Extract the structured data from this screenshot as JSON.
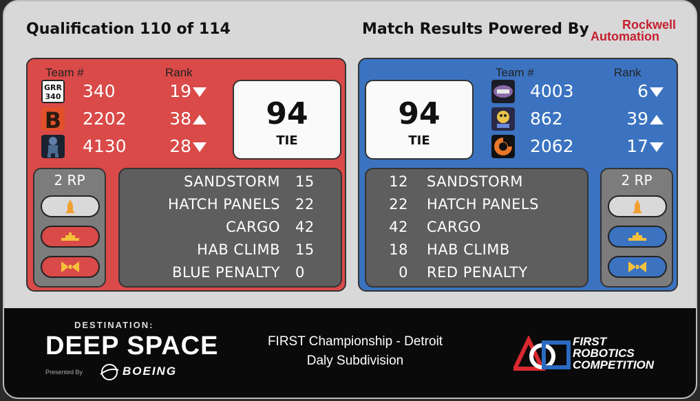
{
  "header": {
    "match_title": "Qualification 110 of 114",
    "powered_by": "Match Results Powered By",
    "sponsor_line1": "Rockwell",
    "sponsor_line2": "Automation"
  },
  "red": {
    "team_header": "Team #",
    "rank_header": "Rank",
    "teams": [
      {
        "number": "340",
        "rank": "19",
        "trend": "down",
        "logo": "grr-logo-icon"
      },
      {
        "number": "2202",
        "rank": "38",
        "trend": "up",
        "logo": "b-logo-icon"
      },
      {
        "number": "4130",
        "rank": "28",
        "trend": "down",
        "logo": "robot-logo-icon"
      }
    ],
    "score": "94",
    "result": "TIE",
    "rp_label": "2 RP",
    "breakdown": [
      {
        "label": "SANDSTORM",
        "value": "15"
      },
      {
        "label": "HATCH PANELS",
        "value": "22"
      },
      {
        "label": "CARGO",
        "value": "42"
      },
      {
        "label": "HAB CLIMB",
        "value": "15"
      },
      {
        "label": "BLUE PENALTY",
        "value": "0"
      }
    ],
    "color": "#d94a48"
  },
  "blue": {
    "team_header": "Team #",
    "rank_header": "Rank",
    "teams": [
      {
        "number": "4003",
        "rank": "6",
        "trend": "down",
        "logo": "team-4003-logo-icon"
      },
      {
        "number": "862",
        "rank": "39",
        "trend": "up",
        "logo": "team-862-logo-icon"
      },
      {
        "number": "2062",
        "rank": "17",
        "trend": "down",
        "logo": "team-2062-logo-icon"
      }
    ],
    "score": "94",
    "result": "TIE",
    "rp_label": "2 RP",
    "breakdown": [
      {
        "label": "SANDSTORM",
        "value": "12"
      },
      {
        "label": "HATCH PANELS",
        "value": "22"
      },
      {
        "label": "CARGO",
        "value": "42"
      },
      {
        "label": "HAB CLIMB",
        "value": "18"
      },
      {
        "label": "RED PENALTY",
        "value": "0"
      }
    ],
    "color": "#3b73c0"
  },
  "footer": {
    "game_dest": "DESTINATION:",
    "game_name": "DEEP SPACE",
    "presented_by": "Presented By",
    "presenter": "BOEING",
    "event_line1": "FIRST Championship - Detroit",
    "event_line2": "Daly Subdivision",
    "frc_line1": "FIRST",
    "frc_line2": "ROBOTICS",
    "frc_line3": "COMPETITION"
  }
}
